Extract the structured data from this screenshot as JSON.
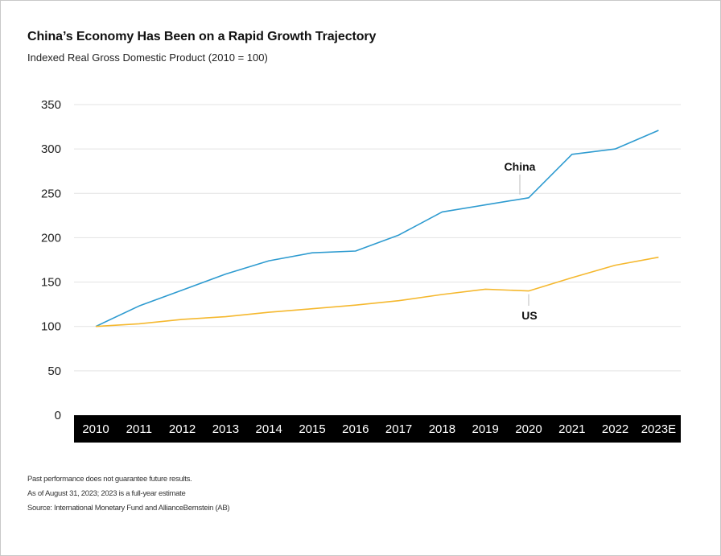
{
  "chart_data": {
    "type": "line",
    "title": "China’s Economy Has Been on a Rapid Growth Trajectory",
    "subtitle": "Indexed Real Gross Domestic Product (2010 = 100)",
    "categories": [
      "2010",
      "2011",
      "2012",
      "2013",
      "2014",
      "2015",
      "2016",
      "2017",
      "2018",
      "2019",
      "2020",
      "2021",
      "2022",
      "2023E"
    ],
    "yticks": [
      "0",
      "50",
      "100",
      "150",
      "200",
      "250",
      "300",
      "350"
    ],
    "ylim": [
      0,
      350
    ],
    "grid": true,
    "series": [
      {
        "name": "China",
        "color": "#2e9bd0",
        "values": [
          100,
          123,
          141,
          159,
          174,
          183,
          185,
          203,
          229,
          237,
          245,
          294,
          300,
          321
        ]
      },
      {
        "name": "US",
        "color": "#f5b82e",
        "values": [
          100,
          103,
          108,
          111,
          116,
          120,
          124,
          129,
          136,
          142,
          140,
          155,
          169,
          178
        ]
      }
    ]
  },
  "notes": [
    "Past performance does not guarantee future results.",
    "As of August 31, 2023; 2023 is a full-year estimate",
    "Source: International Monetary Fund and AllianceBernstein (AB)"
  ]
}
